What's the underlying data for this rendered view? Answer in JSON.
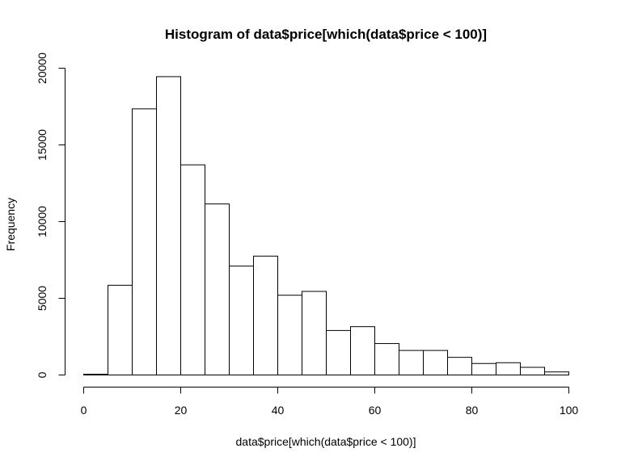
{
  "chart_data": {
    "type": "bar",
    "title": "Histogram of data$price[which(data$price < 100)]",
    "xlabel": "data$price[which(data$price < 100)]",
    "ylabel": "Frequency",
    "bin_edges": [
      0,
      5,
      10,
      15,
      20,
      25,
      30,
      35,
      40,
      45,
      50,
      55,
      60,
      65,
      70,
      75,
      80,
      85,
      90,
      95,
      100
    ],
    "values": [
      50,
      5850,
      17350,
      19450,
      13700,
      11150,
      7100,
      7750,
      5200,
      5450,
      2900,
      3150,
      2050,
      1600,
      1600,
      1150,
      750,
      800,
      500,
      200
    ],
    "xlim": [
      0,
      100
    ],
    "ylim": [
      0,
      20000
    ],
    "x_ticks": [
      0,
      20,
      40,
      60,
      80,
      100
    ],
    "y_ticks": [
      0,
      5000,
      10000,
      15000,
      20000
    ],
    "grid": false,
    "legend": "none",
    "bar_fill": "#ffffff",
    "bar_stroke": "#000000"
  }
}
